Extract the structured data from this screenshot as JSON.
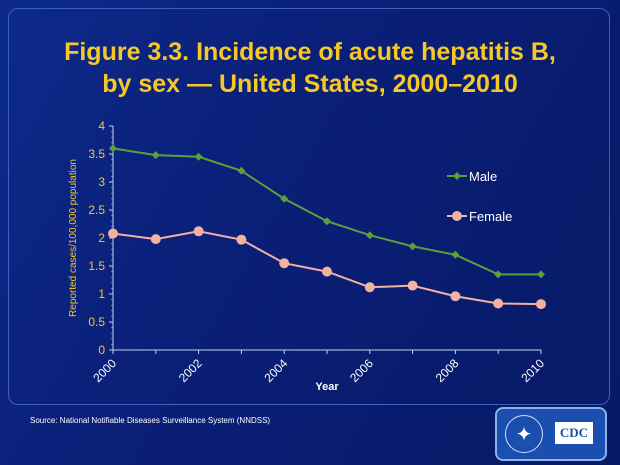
{
  "title_line1": "Figure 3.3. Incidence of acute hepatitis B,",
  "title_line2": "by sex — United States, 2000–2010",
  "source": "Source: National Notifiable Diseases Surveillance System (NNDSS)",
  "logo_text": "CDC",
  "chart_data": {
    "type": "line",
    "title": "Figure 3.3. Incidence of acute hepatitis B, by sex — United States, 2000–2010",
    "xlabel": "Year",
    "ylabel": "Reported cases/100,000 population",
    "x": [
      2000,
      2001,
      2002,
      2003,
      2004,
      2005,
      2006,
      2007,
      2008,
      2009,
      2010
    ],
    "xticks": [
      "2000",
      "2002",
      "2004",
      "2006",
      "2008",
      "2010"
    ],
    "yticks": [
      "0",
      "0.5",
      "1",
      "1.5",
      "2",
      "2.5",
      "3",
      "3.5",
      "4"
    ],
    "ylim": [
      0,
      4
    ],
    "grid": false,
    "legend": "right",
    "series": [
      {
        "name": "Male",
        "color": "#5aa03c",
        "marker": "diamond",
        "values": [
          3.6,
          3.48,
          3.45,
          3.2,
          2.7,
          2.3,
          2.05,
          1.85,
          1.7,
          1.35,
          1.35
        ]
      },
      {
        "name": "Female",
        "color": "#f4b0a0",
        "marker": "circle",
        "values": [
          2.08,
          1.98,
          2.12,
          1.97,
          1.55,
          1.4,
          1.12,
          1.15,
          0.96,
          0.83,
          0.82
        ]
      }
    ]
  },
  "colors": {
    "background": "#0a1f78",
    "title": "#f5c828",
    "axis_text": "#f5c828"
  }
}
